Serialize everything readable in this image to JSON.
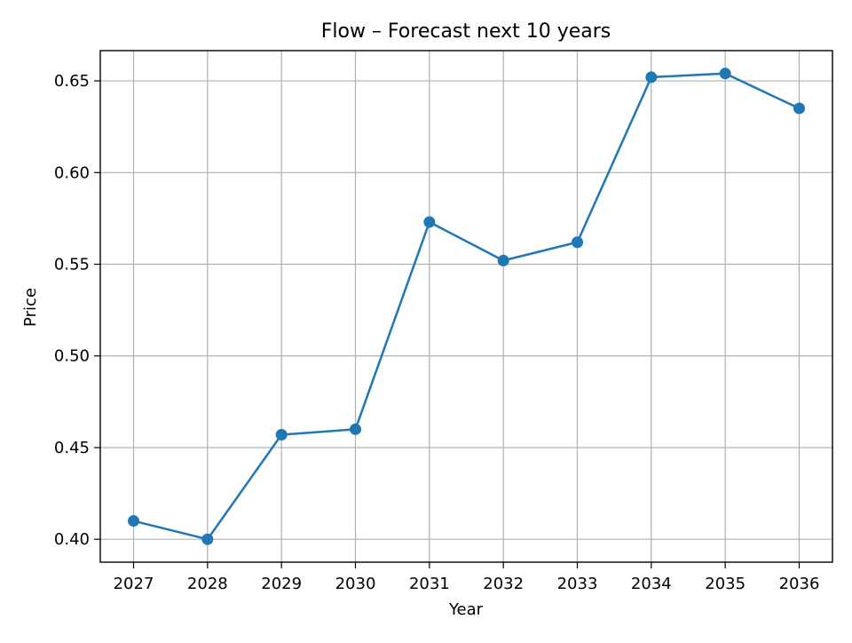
{
  "chart_data": {
    "type": "line",
    "title": "Flow – Forecast next 10 years",
    "xlabel": "Year",
    "ylabel": "Price",
    "x": [
      2027,
      2028,
      2029,
      2030,
      2031,
      2032,
      2033,
      2034,
      2035,
      2036
    ],
    "series": [
      {
        "values": [
          0.41,
          0.4,
          0.457,
          0.46,
          0.573,
          0.552,
          0.562,
          0.652,
          0.654,
          0.635
        ]
      }
    ],
    "xlim": [
      2026.55,
      2036.45
    ],
    "ylim": [
      0.3875,
      0.6665
    ],
    "yticks": [
      "0.40",
      "0.45",
      "0.50",
      "0.55",
      "0.60",
      "0.65"
    ],
    "xticks": [
      "2027",
      "2028",
      "2029",
      "2030",
      "2031",
      "2032",
      "2033",
      "2034",
      "2035",
      "2036"
    ],
    "grid": true,
    "legend": "none",
    "colors": {
      "line": "#1f77b4",
      "grid": "#b0b0b0",
      "axis": "#000000"
    }
  }
}
